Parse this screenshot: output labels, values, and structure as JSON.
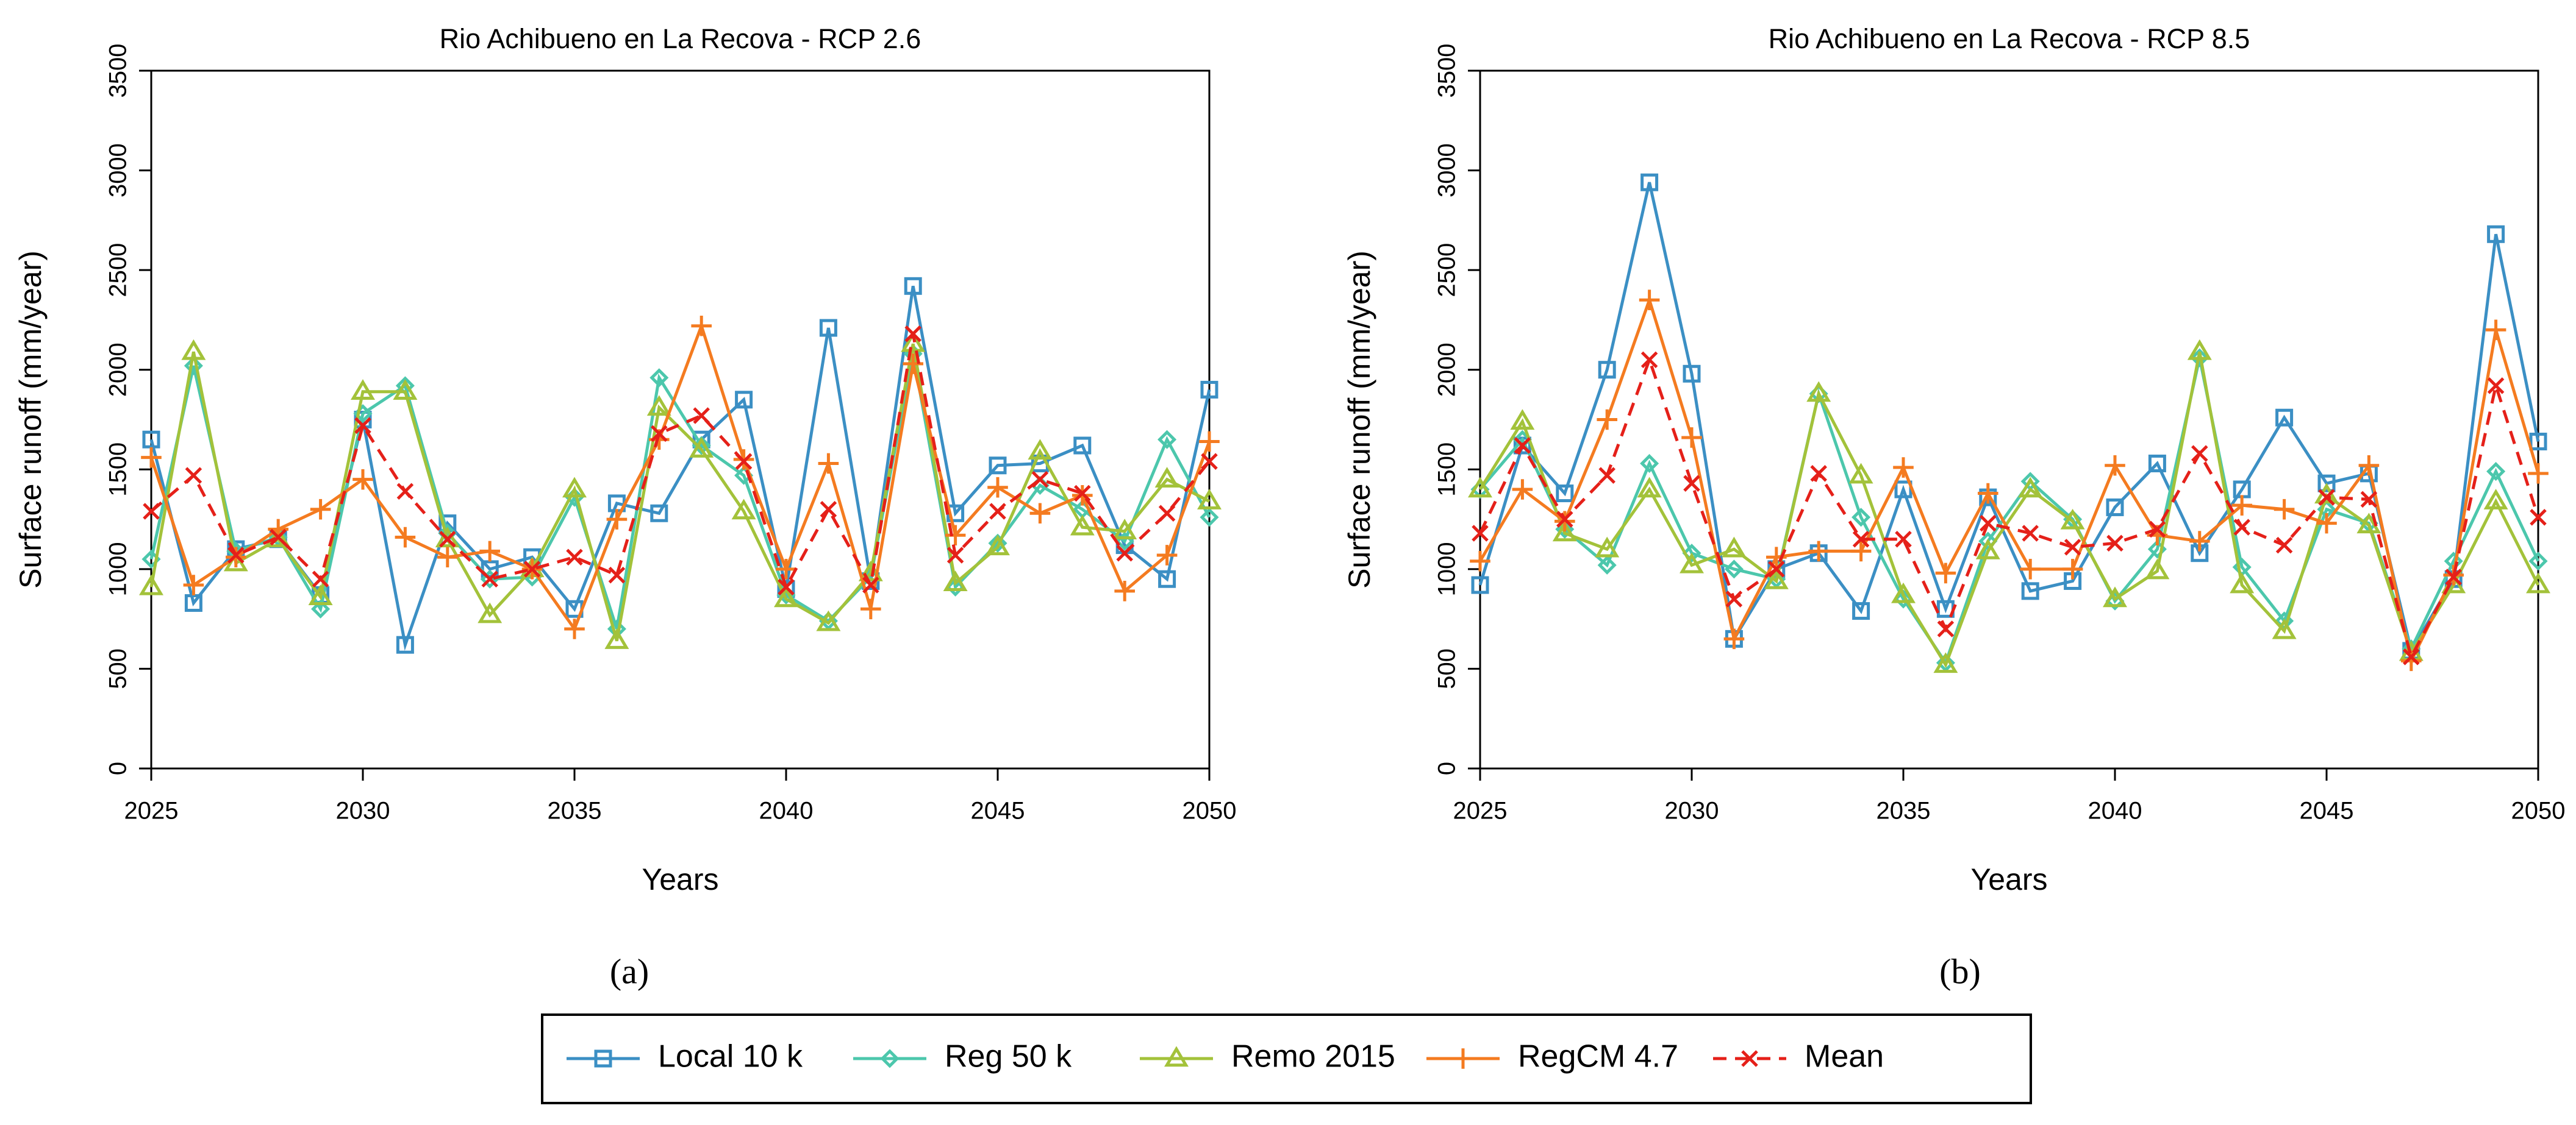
{
  "chart_data": [
    {
      "type": "line",
      "title": "Rio Achibueno en La Recova - RCP 2.6",
      "xlabel": "Years",
      "ylabel": "Surface runoff (mm/year)",
      "panel_label": "(a)",
      "x": [
        2025,
        2026,
        2027,
        2028,
        2029,
        2030,
        2031,
        2032,
        2033,
        2034,
        2035,
        2036,
        2037,
        2038,
        2039,
        2040,
        2041,
        2042,
        2043,
        2044,
        2045,
        2046,
        2047,
        2048,
        2049,
        2050
      ],
      "xlim": [
        2025,
        2050
      ],
      "xticks": [
        2025,
        2030,
        2035,
        2040,
        2045,
        2050
      ],
      "ylim": [
        0,
        3500
      ],
      "yticks": [
        0,
        500,
        1000,
        1500,
        2000,
        2500,
        3000,
        3500
      ],
      "series": [
        {
          "name": "Local 10 k",
          "color": "#3b8fc4",
          "marker": "square",
          "linestyle": "solid",
          "values": [
            1650,
            830,
            1100,
            1150,
            870,
            1750,
            620,
            1230,
            1000,
            1060,
            800,
            1330,
            1280,
            1650,
            1850,
            900,
            2210,
            940,
            2420,
            1280,
            1520,
            1530,
            1620,
            1120,
            950,
            1900
          ]
        },
        {
          "name": "Reg 50 k",
          "color": "#4cc7ac",
          "marker": "diamond",
          "linestyle": "solid",
          "values": [
            1050,
            2020,
            1090,
            1160,
            800,
            1780,
            1920,
            1180,
            950,
            960,
            1360,
            700,
            1960,
            1620,
            1470,
            870,
            740,
            960,
            2080,
            910,
            1130,
            1420,
            1300,
            1140,
            1650,
            1260
          ]
        },
        {
          "name": "Remo 2015",
          "color": "#a3c23a",
          "marker": "triangle",
          "linestyle": "solid",
          "values": [
            910,
            2090,
            1030,
            1150,
            860,
            1890,
            1890,
            1150,
            770,
            1000,
            1400,
            640,
            1810,
            1600,
            1290,
            850,
            730,
            980,
            2130,
            930,
            1110,
            1590,
            1210,
            1190,
            1450,
            1340
          ]
        },
        {
          "name": "RegCM 4.7",
          "color": "#f47b20",
          "marker": "plus",
          "linestyle": "solid",
          "values": [
            1560,
            920,
            1060,
            1200,
            1300,
            1450,
            1160,
            1060,
            1090,
            1000,
            700,
            1250,
            1650,
            2220,
            1550,
            1000,
            1530,
            800,
            2030,
            1170,
            1410,
            1280,
            1370,
            890,
            1070,
            1640
          ]
        },
        {
          "name": "Mean",
          "color": "#e52019",
          "marker": "cross",
          "linestyle": "dashed",
          "values": [
            1290,
            1470,
            1070,
            1160,
            950,
            1720,
            1390,
            1150,
            950,
            1000,
            1060,
            970,
            1680,
            1770,
            1540,
            910,
            1300,
            920,
            2180,
            1070,
            1290,
            1450,
            1380,
            1080,
            1280,
            1540
          ]
        }
      ]
    },
    {
      "type": "line",
      "title": "Rio Achibueno en La Recova - RCP 8.5",
      "xlabel": "Years",
      "ylabel": "Surface runoff (mm/year)",
      "panel_label": "(b)",
      "x": [
        2025,
        2026,
        2027,
        2028,
        2029,
        2030,
        2031,
        2032,
        2033,
        2034,
        2035,
        2036,
        2037,
        2038,
        2039,
        2040,
        2041,
        2042,
        2043,
        2044,
        2045,
        2046,
        2047,
        2048,
        2049,
        2050
      ],
      "xlim": [
        2025,
        2050
      ],
      "xticks": [
        2025,
        2030,
        2035,
        2040,
        2045,
        2050
      ],
      "ylim": [
        0,
        3500
      ],
      "yticks": [
        0,
        500,
        1000,
        1500,
        2000,
        2500,
        3000,
        3500
      ],
      "series": [
        {
          "name": "Local 10 k",
          "color": "#3b8fc4",
          "marker": "square",
          "linestyle": "solid",
          "values": [
            920,
            1620,
            1380,
            2000,
            2940,
            1980,
            650,
            1000,
            1080,
            790,
            1400,
            800,
            1360,
            890,
            940,
            1310,
            1530,
            1080,
            1400,
            1760,
            1430,
            1480,
            590,
            950,
            2680,
            1640
          ]
        },
        {
          "name": "Reg 50 k",
          "color": "#4cc7ac",
          "marker": "diamond",
          "linestyle": "solid",
          "values": [
            1400,
            1650,
            1200,
            1020,
            1530,
            1080,
            1000,
            950,
            1880,
            1260,
            850,
            530,
            1140,
            1440,
            1250,
            840,
            1100,
            2060,
            1010,
            740,
            1300,
            1230,
            600,
            1040,
            1490,
            1040
          ]
        },
        {
          "name": "Remo 2015",
          "color": "#a3c23a",
          "marker": "triangle",
          "linestyle": "solid",
          "values": [
            1400,
            1740,
            1180,
            1100,
            1400,
            1020,
            1100,
            940,
            1880,
            1470,
            870,
            520,
            1090,
            1400,
            1240,
            850,
            990,
            2090,
            920,
            690,
            1370,
            1220,
            580,
            920,
            1340,
            920
          ]
        },
        {
          "name": "RegCM 4.7",
          "color": "#f47b20",
          "marker": "plus",
          "linestyle": "solid",
          "values": [
            1040,
            1400,
            1240,
            1750,
            2350,
            1660,
            650,
            1060,
            1090,
            1090,
            1510,
            980,
            1380,
            1000,
            1000,
            1520,
            1170,
            1140,
            1320,
            1300,
            1230,
            1520,
            540,
            970,
            2200,
            1480
          ]
        },
        {
          "name": "Mean",
          "color": "#e52019",
          "marker": "cross",
          "linestyle": "dashed",
          "values": [
            1180,
            1620,
            1250,
            1470,
            2050,
            1430,
            850,
            1000,
            1480,
            1150,
            1150,
            700,
            1230,
            1180,
            1110,
            1130,
            1200,
            1580,
            1210,
            1120,
            1360,
            1350,
            560,
            960,
            1920,
            1260
          ]
        }
      ]
    }
  ]
}
